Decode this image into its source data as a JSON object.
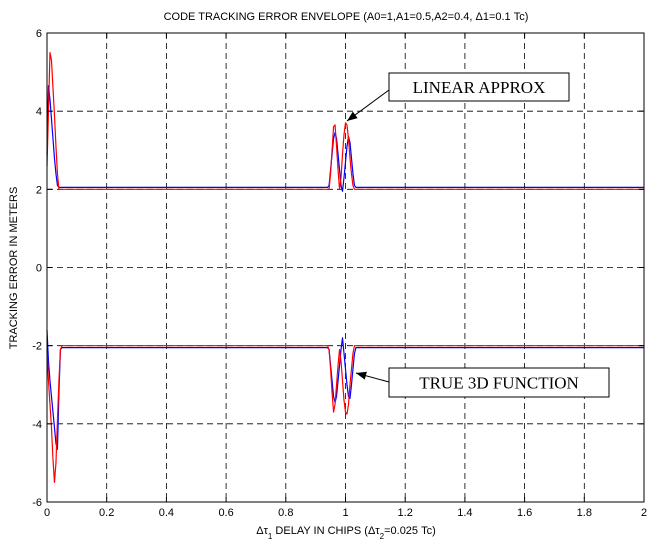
{
  "chart_data": {
    "type": "line",
    "title": "CODE TRACKING ERROR ENVELOPE (A0=1,A1=0.5,A2=0.4, Δ1=0.1 Tc)",
    "xlabel": "Δτ1 DELAY IN CHIPS (Δτ2=0.025 Tc)",
    "ylabel": "TRACKING ERROR IN METERS",
    "xlim": [
      0,
      2
    ],
    "ylim": [
      -6,
      6
    ],
    "xticks": [
      0,
      0.2,
      0.4,
      0.6,
      0.8,
      1,
      1.2,
      1.4,
      1.6,
      1.8,
      2
    ],
    "xtick_labels": [
      "0",
      "0.2",
      "0.4",
      "0.6",
      "0.8",
      "1",
      "1.2",
      "1.4",
      "1.6",
      "1.8",
      "2"
    ],
    "yticks": [
      -6,
      -4,
      -2,
      0,
      2,
      4,
      6
    ],
    "ytick_labels": [
      "-6",
      "-4",
      "-2",
      "0",
      "2",
      "4",
      "6"
    ],
    "grid": true,
    "grid_style": "dashed",
    "annotations": [
      {
        "text": "LINEAR APPROX",
        "arrow_to": [
          1.005,
          3.75
        ]
      },
      {
        "text": "TRUE 3D FUNCTION",
        "arrow_to": [
          1.035,
          -2.7
        ]
      }
    ],
    "series": [
      {
        "color": "#0000ff",
        "x": [
          0,
          0.005,
          0.01,
          0.015,
          0.02,
          0.025,
          0.03,
          0.035,
          0.04,
          0.045,
          0.05,
          0.055,
          0.06,
          0.065,
          0.07,
          0.1,
          0.2,
          0.4,
          0.6,
          0.8,
          0.9,
          0.94,
          0.945,
          0.95,
          0.955,
          0.96,
          0.965,
          0.97,
          0.975,
          0.98,
          0.985,
          0.99,
          0.995,
          1.0,
          1.005,
          1.01,
          1.015,
          1.02,
          1.025,
          1.03,
          1.035,
          1.04,
          1.045,
          1.05,
          1.055,
          1.06,
          1.1,
          1.4,
          1.7,
          2.0
        ],
        "values": [
          2.9,
          4.65,
          4.3,
          3.8,
          3.3,
          2.8,
          2.4,
          2.1,
          2.05,
          2.05,
          2.05,
          2.05,
          2.05,
          2.05,
          2.05,
          2.05,
          2.05,
          2.05,
          2.05,
          2.05,
          2.05,
          2.05,
          2.1,
          2.5,
          2.9,
          3.3,
          3.45,
          3.3,
          2.9,
          2.5,
          2.1,
          1.95,
          2.3,
          2.7,
          3.1,
          3.35,
          3.2,
          2.8,
          2.4,
          2.1,
          2.05,
          2.05,
          2.05,
          2.05,
          2.05,
          2.05,
          2.05,
          2.05,
          2.05,
          2.05
        ]
      },
      {
        "color": "#ff0000",
        "x": [
          0,
          0.005,
          0.01,
          0.015,
          0.02,
          0.025,
          0.03,
          0.035,
          0.04,
          0.045,
          0.05,
          0.055,
          0.06,
          0.065,
          0.07,
          0.1,
          0.2,
          0.4,
          0.6,
          0.8,
          0.9,
          0.94,
          0.945,
          0.95,
          0.955,
          0.96,
          0.965,
          0.97,
          0.975,
          0.98,
          0.985,
          0.99,
          0.995,
          1.0,
          1.005,
          1.01,
          1.015,
          1.02,
          1.025,
          1.03,
          1.035,
          1.04,
          1.045,
          1.05,
          1.055,
          1.06,
          1.1,
          1.4,
          1.7,
          2.0
        ],
        "values": [
          2.6,
          4.0,
          5.5,
          5.3,
          4.6,
          3.9,
          3.1,
          2.4,
          2.0,
          2.0,
          2.0,
          2.0,
          2.0,
          2.0,
          2.0,
          2.0,
          2.0,
          2.0,
          2.0,
          2.0,
          2.0,
          2.0,
          2.0,
          2.4,
          3.0,
          3.6,
          3.65,
          3.1,
          2.5,
          2.0,
          2.3,
          2.9,
          3.4,
          3.7,
          3.65,
          3.3,
          2.8,
          2.4,
          2.1,
          2.0,
          2.0,
          2.0,
          2.0,
          2.0,
          2.0,
          2.0,
          2.0,
          2.0,
          2.0,
          2.0
        ]
      },
      {
        "color": "#0000ff",
        "x": [
          0,
          0.005,
          0.01,
          0.015,
          0.02,
          0.025,
          0.03,
          0.035,
          0.04,
          0.045,
          0.05,
          0.055,
          0.06,
          0.065,
          0.07,
          0.1,
          0.2,
          0.4,
          0.6,
          0.8,
          0.9,
          0.94,
          0.945,
          0.95,
          0.955,
          0.96,
          0.965,
          0.97,
          0.975,
          0.98,
          0.985,
          0.99,
          0.995,
          1.0,
          1.005,
          1.01,
          1.015,
          1.02,
          1.025,
          1.03,
          1.035,
          1.04,
          1.045,
          1.05,
          1.055,
          1.06,
          1.1,
          1.4,
          1.7,
          2.0
        ],
        "values": [
          -1.6,
          -2.4,
          -2.9,
          -3.3,
          -3.7,
          -4.1,
          -4.5,
          -4.65,
          -3.2,
          -2.1,
          -2.05,
          -2.05,
          -2.05,
          -2.05,
          -2.05,
          -2.05,
          -2.05,
          -2.05,
          -2.05,
          -2.05,
          -2.05,
          -2.05,
          -2.1,
          -2.5,
          -2.9,
          -3.3,
          -3.45,
          -3.3,
          -2.9,
          -2.5,
          -2.1,
          -1.8,
          -2.2,
          -2.6,
          -3.0,
          -3.3,
          -3.35,
          -3.0,
          -2.6,
          -2.2,
          -2.05,
          -2.05,
          -2.05,
          -2.05,
          -2.05,
          -2.05,
          -2.05,
          -2.05,
          -2.05,
          -2.05
        ]
      },
      {
        "color": "#ff0000",
        "x": [
          0,
          0.005,
          0.01,
          0.015,
          0.02,
          0.025,
          0.03,
          0.035,
          0.04,
          0.045,
          0.05,
          0.055,
          0.06,
          0.065,
          0.07,
          0.1,
          0.2,
          0.4,
          0.6,
          0.8,
          0.9,
          0.94,
          0.945,
          0.95,
          0.955,
          0.96,
          0.965,
          0.97,
          0.975,
          0.98,
          0.985,
          0.99,
          0.995,
          1.0,
          1.005,
          1.01,
          1.015,
          1.02,
          1.025,
          1.03,
          1.035,
          1.04,
          1.045,
          1.05,
          1.055,
          1.06,
          1.1,
          1.4,
          1.7,
          2.0
        ],
        "values": [
          -2.1,
          -2.9,
          -3.5,
          -4.1,
          -4.9,
          -5.5,
          -5.0,
          -3.9,
          -2.9,
          -2.1,
          -2.0,
          -2.0,
          -2.0,
          -2.0,
          -2.0,
          -2.0,
          -2.0,
          -2.0,
          -2.0,
          -2.0,
          -2.0,
          -2.0,
          -2.1,
          -2.6,
          -3.2,
          -3.7,
          -3.5,
          -3.0,
          -2.5,
          -2.1,
          -2.4,
          -2.9,
          -3.4,
          -3.7,
          -3.75,
          -3.5,
          -3.0,
          -2.6,
          -2.2,
          -2.0,
          -2.0,
          -2.0,
          -2.0,
          -2.0,
          -2.0,
          -2.0,
          -2.0,
          -2.0,
          -2.0,
          -2.0
        ]
      }
    ]
  }
}
